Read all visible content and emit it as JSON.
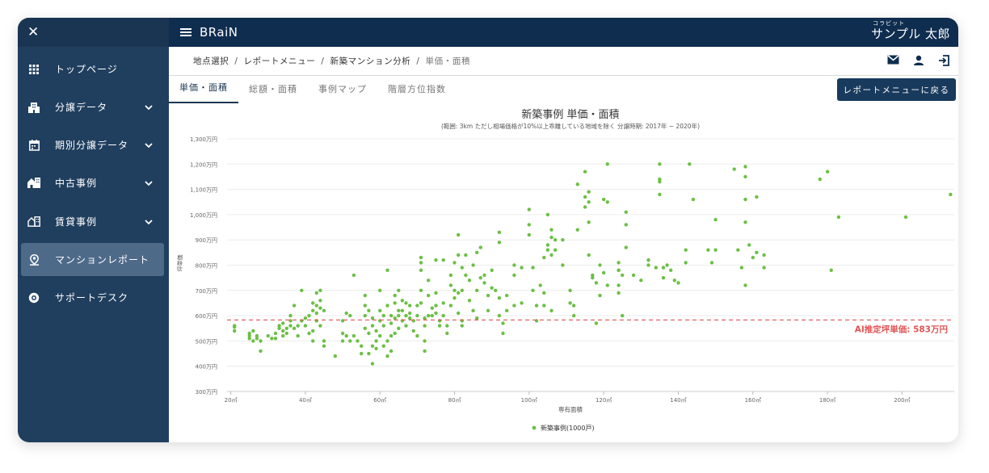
{
  "app": {
    "brand": "BRaiN"
  },
  "user": {
    "ruby": "コラビット",
    "name": "サンプル 太郎"
  },
  "sidebar": {
    "items": [
      {
        "label": "トップページ",
        "icon": "grid-icon",
        "expandable": false,
        "active": false
      },
      {
        "label": "分譲データ",
        "icon": "building-icon",
        "expandable": true,
        "active": false
      },
      {
        "label": "期別分譲データ",
        "icon": "calendar-icon",
        "expandable": true,
        "active": false
      },
      {
        "label": "中古事例",
        "icon": "house-city-icon",
        "expandable": true,
        "active": false
      },
      {
        "label": "賃貸事例",
        "icon": "apartment-icon",
        "expandable": true,
        "active": false
      },
      {
        "label": "マンションレポート",
        "icon": "location-person-icon",
        "expandable": false,
        "active": true
      },
      {
        "label": "サポートデスク",
        "icon": "support-icon",
        "expandable": false,
        "active": false
      }
    ]
  },
  "breadcrumb": {
    "items": [
      "地点選択",
      "レポートメニュー",
      "新築マンション分析"
    ],
    "current": "単価・面積",
    "separator": "/"
  },
  "tabs": [
    {
      "label": "単価・面積",
      "active": true
    },
    {
      "label": "総額・面積",
      "active": false
    },
    {
      "label": "事例マップ",
      "active": false
    },
    {
      "label": "階層方位指数",
      "active": false
    }
  ],
  "back_button": "レポートメニューに戻る",
  "chart_data": {
    "type": "scatter",
    "title": "新築事例 単価・面積",
    "subtitle": "(範囲: 3km ただし相場価格が10%以上乖離している地域を除く 分譲時期: 2017年 ~ 2020年)",
    "xlabel": "専有面積",
    "ylabel": "坪単価",
    "x_ticks": [
      "20㎡",
      "40㎡",
      "60㎡",
      "80㎡",
      "100㎡",
      "120㎡",
      "140㎡",
      "160㎡",
      "180㎡",
      "200㎡"
    ],
    "y_ticks": [
      "300万円",
      "400万円",
      "500万円",
      "600万円",
      "700万円",
      "800万円",
      "900万円",
      "1,000万円",
      "1,100万円",
      "1,200万円",
      "1,300万円"
    ],
    "xlim": [
      19,
      214
    ],
    "ylim": [
      300,
      1300
    ],
    "grid": true,
    "legend_position": "bottom",
    "series": [
      {
        "name": "新築事例(1000戸)",
        "color": "#6cbf45",
        "points": [
          [
            21,
            555
          ],
          [
            21,
            540
          ],
          [
            21,
            560
          ],
          [
            25,
            520
          ],
          [
            25,
            510
          ],
          [
            25,
            530
          ],
          [
            26,
            500
          ],
          [
            26,
            540
          ],
          [
            27,
            510
          ],
          [
            27,
            520
          ],
          [
            28,
            460
          ],
          [
            28,
            500
          ],
          [
            30,
            520
          ],
          [
            31,
            510
          ],
          [
            32,
            530
          ],
          [
            32,
            510
          ],
          [
            33,
            550
          ],
          [
            33,
            560
          ],
          [
            34,
            520
          ],
          [
            34,
            540
          ],
          [
            34,
            570
          ],
          [
            35,
            550
          ],
          [
            35,
            530
          ],
          [
            36,
            600
          ],
          [
            36,
            580
          ],
          [
            36,
            560
          ],
          [
            37,
            640
          ],
          [
            37,
            550
          ],
          [
            38,
            520
          ],
          [
            38,
            560
          ],
          [
            39,
            700
          ],
          [
            39,
            580
          ],
          [
            40,
            590
          ],
          [
            40,
            560
          ],
          [
            41,
            530
          ],
          [
            41,
            600
          ],
          [
            42,
            620
          ],
          [
            42,
            650
          ],
          [
            42,
            540
          ],
          [
            42,
            500
          ],
          [
            43,
            690
          ],
          [
            43,
            640
          ],
          [
            43,
            610
          ],
          [
            43,
            580
          ],
          [
            44,
            660
          ],
          [
            44,
            630
          ],
          [
            44,
            700
          ],
          [
            44,
            560
          ],
          [
            45,
            620
          ],
          [
            45,
            500
          ],
          [
            45,
            480
          ],
          [
            48,
            440
          ],
          [
            50,
            580
          ],
          [
            50,
            500
          ],
          [
            50,
            530
          ],
          [
            51,
            610
          ],
          [
            51,
            520
          ],
          [
            52,
            600
          ],
          [
            52,
            500
          ],
          [
            53,
            520
          ],
          [
            54,
            500
          ],
          [
            53,
            760
          ],
          [
            55,
            480
          ],
          [
            55,
            450
          ],
          [
            56,
            640
          ],
          [
            56,
            680
          ],
          [
            56,
            600
          ],
          [
            56,
            550
          ],
          [
            57,
            450
          ],
          [
            57,
            530
          ],
          [
            57,
            620
          ],
          [
            58,
            480
          ],
          [
            58,
            410
          ],
          [
            58,
            560
          ],
          [
            58,
            590
          ],
          [
            59,
            500
          ],
          [
            59,
            540
          ],
          [
            59,
            470
          ],
          [
            60,
            580
          ],
          [
            60,
            620
          ],
          [
            60,
            520
          ],
          [
            60,
            700
          ],
          [
            61,
            560
          ],
          [
            61,
            480
          ],
          [
            61,
            600
          ],
          [
            62,
            440
          ],
          [
            62,
            500
          ],
          [
            62,
            640
          ],
          [
            62,
            780
          ],
          [
            63,
            570
          ],
          [
            63,
            520
          ],
          [
            63,
            600
          ],
          [
            63,
            460
          ],
          [
            64,
            650
          ],
          [
            64,
            590
          ],
          [
            64,
            680
          ],
          [
            64,
            530
          ],
          [
            65,
            600
          ],
          [
            65,
            620
          ],
          [
            65,
            700
          ],
          [
            65,
            550
          ],
          [
            66,
            620
          ],
          [
            66,
            580
          ],
          [
            66,
            660
          ],
          [
            67,
            560
          ],
          [
            67,
            650
          ],
          [
            67,
            600
          ],
          [
            68,
            610
          ],
          [
            68,
            590
          ],
          [
            68,
            640
          ],
          [
            69,
            540
          ],
          [
            69,
            580
          ],
          [
            70,
            600
          ],
          [
            70,
            640
          ],
          [
            70,
            520
          ],
          [
            71,
            780
          ],
          [
            71,
            830
          ],
          [
            71,
            810
          ],
          [
            71,
            700
          ],
          [
            71,
            650
          ],
          [
            72,
            590
          ],
          [
            72,
            560
          ],
          [
            72,
            500
          ],
          [
            72,
            460
          ],
          [
            73,
            680
          ],
          [
            73,
            600
          ],
          [
            73,
            740
          ],
          [
            74,
            600
          ],
          [
            74,
            630
          ],
          [
            75,
            820
          ],
          [
            75,
            690
          ],
          [
            75,
            640
          ],
          [
            75,
            610
          ],
          [
            76,
            580
          ],
          [
            76,
            560
          ],
          [
            77,
            820
          ],
          [
            77,
            650
          ],
          [
            77,
            600
          ],
          [
            78,
            530
          ],
          [
            78,
            560
          ],
          [
            79,
            640
          ],
          [
            79,
            720
          ],
          [
            79,
            760
          ],
          [
            80,
            700
          ],
          [
            80,
            670
          ],
          [
            80,
            810
          ],
          [
            81,
            690
          ],
          [
            81,
            610
          ],
          [
            81,
            840
          ],
          [
            81,
            920
          ],
          [
            82,
            580
          ],
          [
            82,
            560
          ],
          [
            82,
            700
          ],
          [
            82,
            790
          ],
          [
            83,
            840
          ],
          [
            83,
            760
          ],
          [
            84,
            740
          ],
          [
            84,
            660
          ],
          [
            85,
            800
          ],
          [
            85,
            620
          ],
          [
            86,
            850
          ],
          [
            86,
            700
          ],
          [
            86,
            590
          ],
          [
            87,
            870
          ],
          [
            87,
            750
          ],
          [
            88,
            760
          ],
          [
            88,
            730
          ],
          [
            89,
            680
          ],
          [
            89,
            620
          ],
          [
            90,
            780
          ],
          [
            90,
            710
          ],
          [
            91,
            700
          ],
          [
            92,
            600
          ],
          [
            92,
            670
          ],
          [
            92,
            890
          ],
          [
            92,
            930
          ],
          [
            93,
            530
          ],
          [
            93,
            570
          ],
          [
            94,
            620
          ],
          [
            94,
            680
          ],
          [
            96,
            800
          ],
          [
            96,
            760
          ],
          [
            96,
            640
          ],
          [
            98,
            790
          ],
          [
            98,
            650
          ],
          [
            100,
            960
          ],
          [
            100,
            1020
          ],
          [
            100,
            920
          ],
          [
            101,
            790
          ],
          [
            101,
            700
          ],
          [
            102,
            640
          ],
          [
            102,
            580
          ],
          [
            103,
            720
          ],
          [
            104,
            640
          ],
          [
            104,
            830
          ],
          [
            104,
            690
          ],
          [
            105,
            880
          ],
          [
            105,
            860
          ],
          [
            105,
            1000
          ],
          [
            106,
            940
          ],
          [
            106,
            910
          ],
          [
            106,
            840
          ],
          [
            106,
            620
          ],
          [
            107,
            900
          ],
          [
            107,
            860
          ],
          [
            109,
            900
          ],
          [
            109,
            800
          ],
          [
            111,
            700
          ],
          [
            111,
            650
          ],
          [
            112,
            640
          ],
          [
            112,
            600
          ],
          [
            113,
            1120
          ],
          [
            113,
            940
          ],
          [
            115,
            1170
          ],
          [
            115,
            1070
          ],
          [
            115,
            1030
          ],
          [
            116,
            1090
          ],
          [
            116,
            970
          ],
          [
            116,
            1050
          ],
          [
            116,
            840
          ],
          [
            117,
            760
          ],
          [
            117,
            750
          ],
          [
            118,
            730
          ],
          [
            118,
            570
          ],
          [
            119,
            800
          ],
          [
            119,
            680
          ],
          [
            120,
            1060
          ],
          [
            120,
            770
          ],
          [
            121,
            1050
          ],
          [
            121,
            720
          ],
          [
            121,
            1200
          ],
          [
            124,
            810
          ],
          [
            124,
            780
          ],
          [
            124,
            780
          ],
          [
            124,
            720
          ],
          [
            124,
            690
          ],
          [
            125,
            600
          ],
          [
            125,
            760
          ],
          [
            126,
            960
          ],
          [
            126,
            1010
          ],
          [
            126,
            870
          ],
          [
            128,
            760
          ],
          [
            130,
            740
          ],
          [
            132,
            820
          ],
          [
            132,
            800
          ],
          [
            134,
            790
          ],
          [
            135,
            1200
          ],
          [
            135,
            1140
          ],
          [
            135,
            1130
          ],
          [
            135,
            1080
          ],
          [
            136,
            750
          ],
          [
            136,
            790
          ],
          [
            137,
            800
          ],
          [
            138,
            780
          ],
          [
            139,
            740
          ],
          [
            140,
            730
          ],
          [
            142,
            810
          ],
          [
            142,
            860
          ],
          [
            143,
            1200
          ],
          [
            144,
            1060
          ],
          [
            148,
            860
          ],
          [
            149,
            810
          ],
          [
            150,
            980
          ],
          [
            150,
            860
          ],
          [
            155,
            1180
          ],
          [
            156,
            860
          ],
          [
            157,
            790
          ],
          [
            158,
            720
          ],
          [
            158,
            1190
          ],
          [
            158,
            1150
          ],
          [
            158,
            1060
          ],
          [
            158,
            970
          ],
          [
            159,
            880
          ],
          [
            160,
            830
          ],
          [
            161,
            1070
          ],
          [
            161,
            850
          ],
          [
            163,
            790
          ],
          [
            163,
            840
          ],
          [
            178,
            1140
          ],
          [
            180,
            1170
          ],
          [
            181,
            780
          ],
          [
            183,
            990
          ],
          [
            201,
            990
          ],
          [
            213,
            1080
          ]
        ]
      }
    ],
    "reference_line": {
      "value": 583,
      "label": "AI推定坪単価: 583万円",
      "color": "#e05555"
    }
  }
}
